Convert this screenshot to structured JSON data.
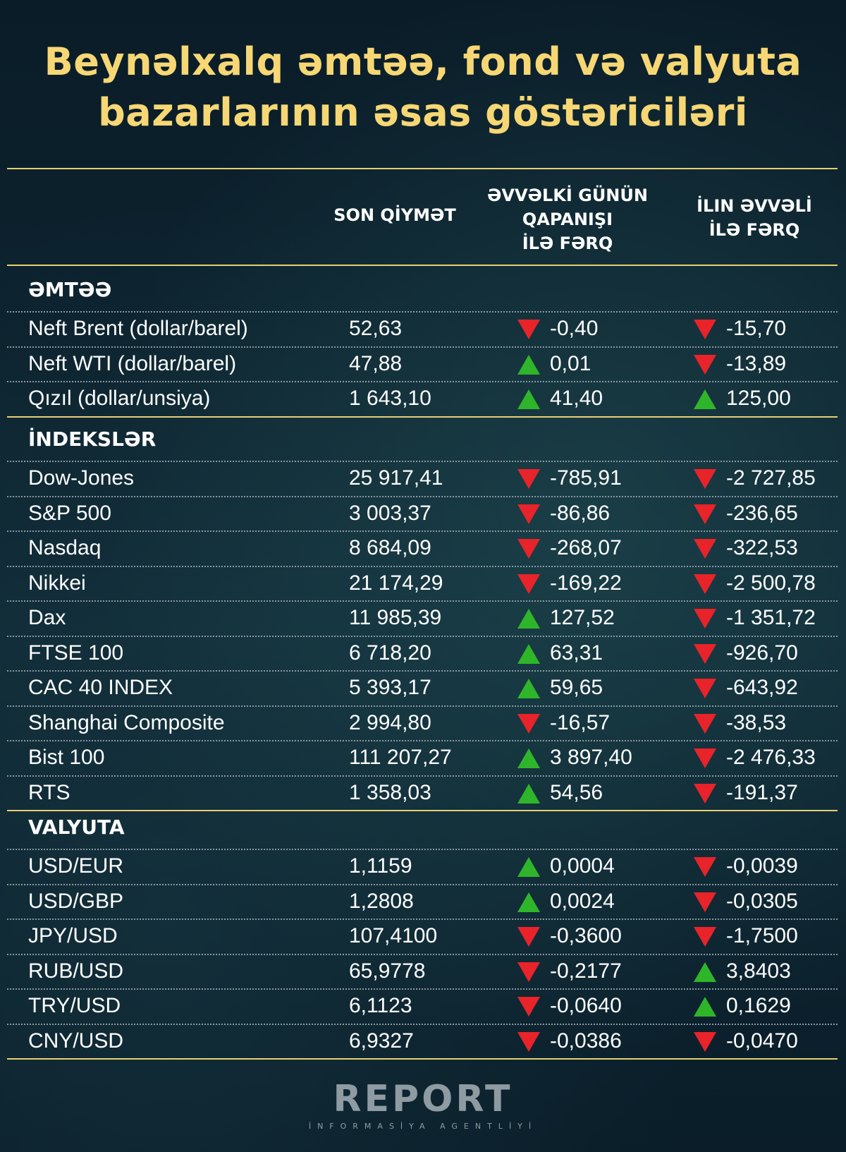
{
  "title": {
    "line1": "Beynəlxalq əmtəə, fond və valyuta",
    "line2": "bazarlarının əsas göstəriciləri"
  },
  "headers": {
    "col1": "SON QİYMƏT",
    "col2_l1": "ƏVVƏLKİ GÜNÜN",
    "col2_l2": "QAPANIŞI",
    "col2_l3": "İLƏ FƏRQ",
    "col3_l1": "İLIN ƏVVƏLİ",
    "col3_l2": "İLƏ FƏRQ"
  },
  "colors": {
    "title": "#f6d774",
    "up": "#2fb52a",
    "down": "#e8232a",
    "rule": "#e8cf72"
  },
  "sections": [
    {
      "name": "ƏMTƏƏ",
      "rows": [
        {
          "label": "Neft Brent (dollar/barel)",
          "price": "52,63",
          "d1_dir": "down",
          "d1": "-0,40",
          "d2_dir": "down",
          "d2": "-15,70"
        },
        {
          "label": "Neft WTI (dollar/barel)",
          "price": "47,88",
          "d1_dir": "up",
          "d1": "0,01",
          "d2_dir": "down",
          "d2": "-13,89"
        },
        {
          "label": "Qızıl (dollar/unsiya)",
          "price": "1 643,10",
          "d1_dir": "up",
          "d1": "41,40",
          "d2_dir": "up",
          "d2": "125,00"
        }
      ]
    },
    {
      "name": "İNDEKSLƏR",
      "rows": [
        {
          "label": "Dow-Jones",
          "price": "25 917,41",
          "d1_dir": "down",
          "d1": "-785,91",
          "d2_dir": "down",
          "d2": "-2 727,85"
        },
        {
          "label": "S&P 500",
          "price": "3 003,37",
          "d1_dir": "down",
          "d1": "-86,86",
          "d2_dir": "down",
          "d2": "-236,65"
        },
        {
          "label": "Nasdaq",
          "price": "8 684,09",
          "d1_dir": "down",
          "d1": "-268,07",
          "d2_dir": "down",
          "d2": "-322,53"
        },
        {
          "label": "Nikkei",
          "price": "21 174,29",
          "d1_dir": "down",
          "d1": "-169,22",
          "d2_dir": "down",
          "d2": "-2 500,78"
        },
        {
          "label": "Dax",
          "price": "11 985,39",
          "d1_dir": "up",
          "d1": "127,52",
          "d2_dir": "down",
          "d2": "-1 351,72"
        },
        {
          "label": "FTSE 100",
          "price": "6 718,20",
          "d1_dir": "up",
          "d1": "63,31",
          "d2_dir": "down",
          "d2": "-926,70"
        },
        {
          "label": "CAC 40 INDEX",
          "price": "5 393,17",
          "d1_dir": "up",
          "d1": "59,65",
          "d2_dir": "down",
          "d2": "-643,92"
        },
        {
          "label": "Shanghai Composite",
          "price": "2 994,80",
          "d1_dir": "down",
          "d1": "-16,57",
          "d2_dir": "down",
          "d2": "-38,53"
        },
        {
          "label": "Bist 100",
          "price": "111 207,27",
          "d1_dir": "up",
          "d1": "3 897,40",
          "d2_dir": "down",
          "d2": "-2 476,33"
        },
        {
          "label": "RTS",
          "price": "1 358,03",
          "d1_dir": "up",
          "d1": "54,56",
          "d2_dir": "down",
          "d2": "-191,37"
        }
      ]
    },
    {
      "name": "VALYUTA",
      "rows": [
        {
          "label": "USD/EUR",
          "price": "1,1159",
          "d1_dir": "up",
          "d1": "0,0004",
          "d2_dir": "down",
          "d2": "-0,0039"
        },
        {
          "label": "USD/GBP",
          "price": "1,2808",
          "d1_dir": "up",
          "d1": "0,0024",
          "d2_dir": "down",
          "d2": "-0,0305"
        },
        {
          "label": "JPY/USD",
          "price": "107,4100",
          "d1_dir": "down",
          "d1": "-0,3600",
          "d2_dir": "down",
          "d2": "-1,7500"
        },
        {
          "label": "RUB/USD",
          "price": "65,9778",
          "d1_dir": "down",
          "d1": "-0,2177",
          "d2_dir": "up",
          "d2": "3,8403"
        },
        {
          "label": "TRY/USD",
          "price": "6,1123",
          "d1_dir": "down",
          "d1": "-0,0640",
          "d2_dir": "up",
          "d2": "0,1629"
        },
        {
          "label": "CNY/USD",
          "price": "6,9327",
          "d1_dir": "down",
          "d1": "-0,0386",
          "d2_dir": "down",
          "d2": "-0,0470"
        }
      ]
    }
  ],
  "logo": {
    "brand": "REPORT",
    "sub": "İNFORMASİYA AGENTLİYİ"
  }
}
